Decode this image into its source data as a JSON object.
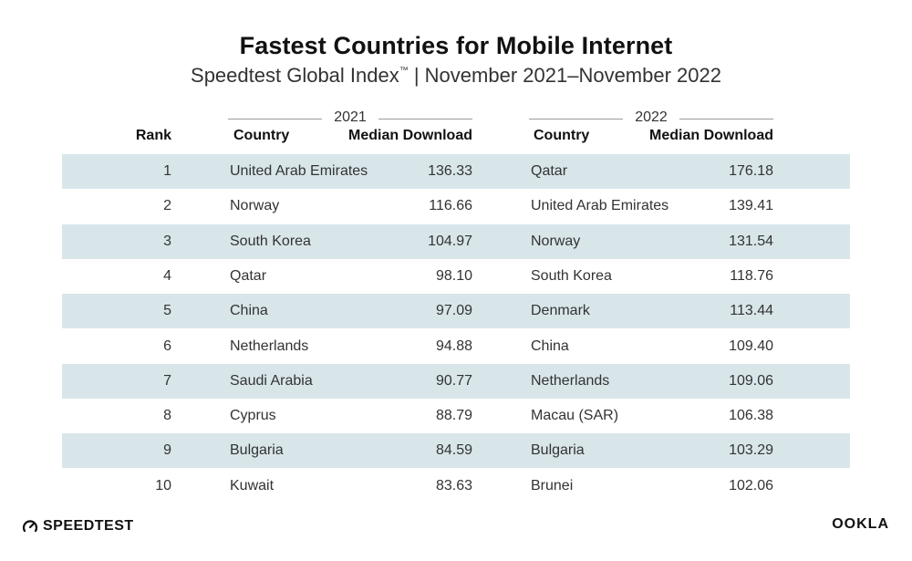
{
  "title": "Fastest Countries for Mobile Internet",
  "subtitle": "Speedtest Global Index",
  "subtitle_tm": "™",
  "subtitle_rest": " | November 2021–November 2022",
  "headers": {
    "rank": "Rank",
    "country": "Country",
    "median": "Median Download"
  },
  "chart_data": {
    "type": "table",
    "title": "Fastest Countries for Mobile Internet",
    "subtitle": "Speedtest Global Index™ | November 2021–November 2022",
    "groups": [
      "2021",
      "2022"
    ],
    "columns": [
      "Rank",
      "Country",
      "Median Download",
      "Country",
      "Median Download"
    ],
    "rows": [
      {
        "rank": "1",
        "country_2021": "United Arab Emirates",
        "download_2021": "136.33",
        "country_2022": "Qatar",
        "download_2022": "176.18"
      },
      {
        "rank": "2",
        "country_2021": "Norway",
        "download_2021": "116.66",
        "country_2022": "United Arab Emirates",
        "download_2022": "139.41"
      },
      {
        "rank": "3",
        "country_2021": "South Korea",
        "download_2021": "104.97",
        "country_2022": "Norway",
        "download_2022": "131.54"
      },
      {
        "rank": "4",
        "country_2021": "Qatar",
        "download_2021": "98.10",
        "country_2022": "South Korea",
        "download_2022": "118.76"
      },
      {
        "rank": "5",
        "country_2021": "China",
        "download_2021": "97.09",
        "country_2022": "Denmark",
        "download_2022": "113.44"
      },
      {
        "rank": "6",
        "country_2021": "Netherlands",
        "download_2021": "94.88",
        "country_2022": "China",
        "download_2022": "109.40"
      },
      {
        "rank": "7",
        "country_2021": "Saudi Arabia",
        "download_2021": "90.77",
        "country_2022": "Netherlands",
        "download_2022": "109.06"
      },
      {
        "rank": "8",
        "country_2021": "Cyprus",
        "download_2021": "88.79",
        "country_2022": "Macau (SAR)",
        "download_2022": "106.38"
      },
      {
        "rank": "9",
        "country_2021": "Bulgaria",
        "download_2021": "84.59",
        "country_2022": "Bulgaria",
        "download_2022": "103.29"
      },
      {
        "rank": "10",
        "country_2021": "Kuwait",
        "download_2021": "83.63",
        "country_2022": "Brunei",
        "download_2022": "102.06"
      }
    ]
  },
  "colors": {
    "row_shade": "#d8e6ea",
    "text": "#333333",
    "header": "#111111",
    "rule": "#9a9a9a"
  },
  "logos": {
    "left": "SPEEDTEST",
    "left_icon": "speedometer-icon",
    "right": "OOKLA"
  }
}
